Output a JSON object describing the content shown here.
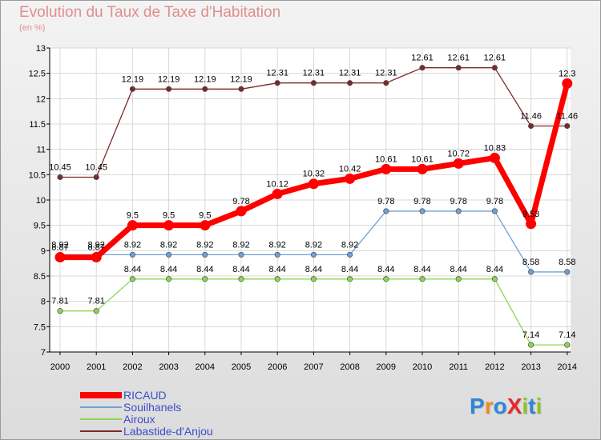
{
  "title": "Evolution du Taux de Taxe d'Habitation",
  "unit": "(en %)",
  "logo": "ProXiti",
  "chart_data": {
    "type": "line",
    "title": "Evolution du Taux de Taxe d'Habitation",
    "ylabel": "(en %)",
    "x": [
      2000,
      2001,
      2002,
      2003,
      2004,
      2005,
      2006,
      2007,
      2008,
      2009,
      2010,
      2011,
      2012,
      2013,
      2014
    ],
    "y_ticks": [
      7,
      7.5,
      8,
      8.5,
      9,
      9.5,
      10,
      10.5,
      11,
      11.5,
      12,
      12.5,
      13
    ],
    "ylim": [
      7,
      13
    ],
    "grid": true,
    "legend_position": "bottom-left",
    "series": [
      {
        "name": "RICAUD",
        "color": "#ff0000",
        "values": [
          8.87,
          8.87,
          9.5,
          9.5,
          9.5,
          9.78,
          10.12,
          10.32,
          10.42,
          10.61,
          10.61,
          10.72,
          10.83,
          9.53,
          12.3
        ],
        "labels": [
          "8.87",
          "8.87",
          "9.5",
          "9.5",
          "9.5",
          "9.78",
          "10.12",
          "10.32",
          "10.42",
          "10.61",
          "10.61",
          "10.72",
          "10.83",
          "9.53",
          "12.3"
        ]
      },
      {
        "name": "Souilhanels",
        "color": "#6fa2d4",
        "values": [
          8.92,
          8.92,
          8.92,
          8.92,
          8.92,
          8.92,
          8.92,
          8.92,
          8.92,
          9.78,
          9.78,
          9.78,
          9.78,
          8.58,
          8.58
        ],
        "labels": [
          "8.92",
          "8.92",
          "8.92",
          "8.92",
          "8.92",
          "8.92",
          "8.92",
          "8.92",
          "8.92",
          "9.78",
          "9.78",
          "9.78",
          "9.78",
          "8.58",
          "8.58"
        ]
      },
      {
        "name": "Airoux",
        "color": "#8ed652",
        "values": [
          7.81,
          7.81,
          8.44,
          8.44,
          8.44,
          8.44,
          8.44,
          8.44,
          8.44,
          8.44,
          8.44,
          8.44,
          8.44,
          7.14,
          7.14
        ],
        "labels": [
          "7.81",
          "7.81",
          "8.44",
          "8.44",
          "8.44",
          "8.44",
          "8.44",
          "8.44",
          "8.44",
          "8.44",
          "8.44",
          "8.44",
          "8.44",
          "7.14",
          "7.14"
        ]
      },
      {
        "name": "Labastide-d'Anjou",
        "color": "#7a2a2a",
        "values": [
          10.45,
          10.45,
          12.19,
          12.19,
          12.19,
          12.19,
          12.31,
          12.31,
          12.31,
          12.31,
          12.61,
          12.61,
          12.61,
          11.46,
          11.46
        ],
        "labels": [
          "10.45",
          "10.45",
          "12.19",
          "12.19",
          "12.19",
          "12.19",
          "12.31",
          "12.31",
          "12.31",
          "12.31",
          "12.61",
          "12.61",
          "12.61",
          "11.46",
          "11.46"
        ]
      }
    ]
  }
}
